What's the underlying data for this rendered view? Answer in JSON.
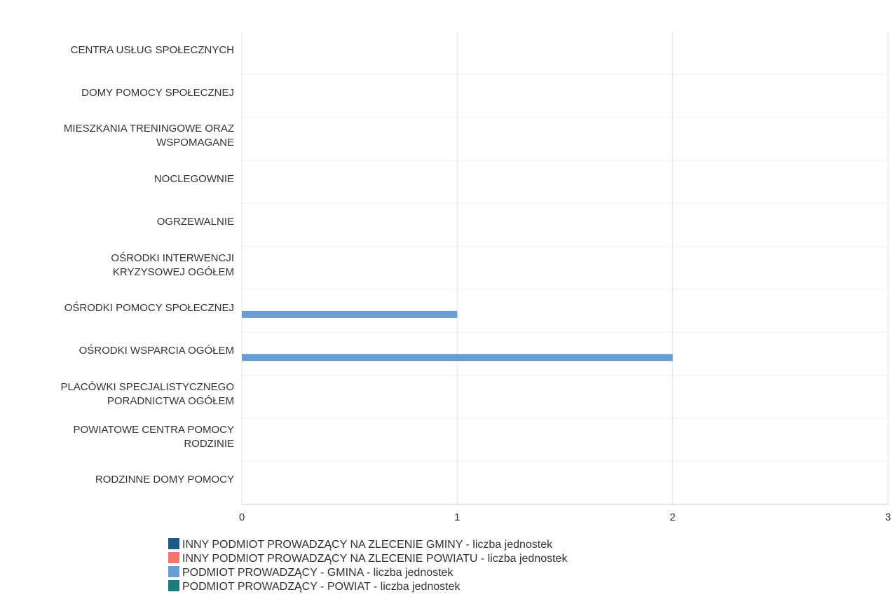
{
  "chart_data": {
    "type": "hbar",
    "categories": [
      "CENTRA USŁUG SPOŁECZNYCH",
      "DOMY POMOCY SPOŁECZNEJ",
      "MIESZKANIA TRENINGOWE ORAZ\nWSPOMAGANE",
      "NOCLEGOWNIE",
      "OGRZEWALNIE",
      "OŚRODKI INTERWENCJI\nKRYZYSOWEJ OGÓŁEM",
      "OŚRODKI POMOCY SPOŁECZNEJ",
      "OŚRODKI WSPARCIA OGÓŁEM",
      "PLACÓWKI SPECJALISTYCZNEGO\nPORADNICTWA OGÓŁEM",
      "POWIATOWE CENTRA POMOCY\nRODZINIE",
      "RODZINNE DOMY POMOCY"
    ],
    "series": [
      {
        "name": "INNY PODMIOT PROWADZĄCY NA ZLECENIE GMINY - liczba jednostek",
        "color": "#1f5a86",
        "values": [
          0,
          0,
          0,
          0,
          0,
          0,
          0,
          0,
          0,
          0,
          0
        ]
      },
      {
        "name": "INNY PODMIOT PROWADZĄCY NA ZLECENIE POWIATU - liczba jednostek",
        "color": "#f0786a",
        "values": [
          0,
          0,
          0,
          0,
          0,
          0,
          0,
          0,
          0,
          0,
          0
        ]
      },
      {
        "name": "PODMIOT PROWADZĄCY - GMINA - liczba jednostek",
        "color": "#6a9bd3",
        "values": [
          0,
          0,
          0,
          0,
          0,
          0,
          1,
          2,
          0,
          0,
          0
        ]
      },
      {
        "name": "PODMIOT PROWADZĄCY - POWIAT - liczba jednostek",
        "color": "#1b7c80",
        "values": [
          0,
          0,
          0,
          0,
          0,
          0,
          0,
          0,
          0,
          0,
          0
        ]
      }
    ],
    "xlim": [
      0,
      3
    ],
    "xticks": [
      0,
      1,
      2,
      3
    ],
    "grid": true
  }
}
